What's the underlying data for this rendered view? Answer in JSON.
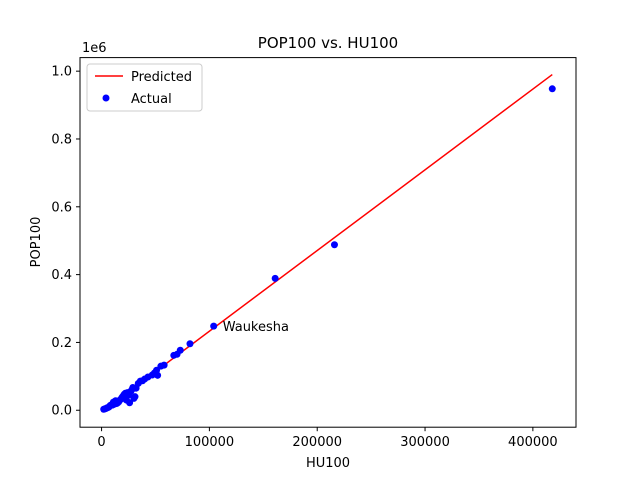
{
  "chart_data": {
    "type": "scatter",
    "title": "POP100 vs. HU100",
    "xlabel": "HU100",
    "ylabel": "POP100",
    "y_offset_label": "1e6",
    "xlim": [
      -20000,
      440000
    ],
    "ylim": [
      -0.05,
      1.04
    ],
    "x_ticks": [
      0,
      100000,
      200000,
      300000,
      400000
    ],
    "x_tick_labels": [
      "0",
      "100000",
      "200000",
      "300000",
      "400000"
    ],
    "y_ticks": [
      0.0,
      0.2,
      0.4,
      0.6,
      0.8,
      1.0
    ],
    "y_tick_labels": [
      "0.0",
      "0.2",
      "0.4",
      "0.6",
      "0.8",
      "1.0"
    ],
    "grid": false,
    "legend_position": "top-left",
    "series": [
      {
        "name": "Predicted",
        "kind": "line",
        "color": "#ff0000",
        "x": [
          0,
          418000
        ],
        "y": [
          -0.005,
          0.99
        ]
      },
      {
        "name": "Actual",
        "kind": "scatter",
        "color": "#0000ff",
        "x": [
          418000,
          216000,
          161000,
          104000,
          82000,
          73000,
          70000,
          67000,
          58000,
          55000,
          52000,
          51000,
          49000,
          47000,
          43000,
          40000,
          38000,
          36000,
          34000,
          32000,
          31000,
          30000,
          29000,
          28000,
          27000,
          26000,
          25000,
          24000,
          23000,
          22000,
          21000,
          20000,
          19000,
          18000,
          17000,
          16000,
          15000,
          14000,
          13000,
          12000,
          11000,
          10000,
          9000,
          8000,
          7000,
          6000,
          5000,
          4000,
          3000,
          2000
        ],
        "y": [
          0.948,
          0.488,
          0.389,
          0.248,
          0.196,
          0.177,
          0.165,
          0.162,
          0.133,
          0.13,
          0.103,
          0.118,
          0.11,
          0.104,
          0.098,
          0.092,
          0.087,
          0.086,
          0.079,
          0.065,
          0.04,
          0.035,
          0.067,
          0.06,
          0.055,
          0.022,
          0.045,
          0.052,
          0.03,
          0.05,
          0.047,
          0.042,
          0.038,
          0.033,
          0.03,
          0.025,
          0.022,
          0.02,
          0.028,
          0.018,
          0.024,
          0.015,
          0.016,
          0.014,
          0.01,
          0.008,
          0.007,
          0.005,
          0.004,
          0.003
        ]
      }
    ],
    "annotations": [
      {
        "text": "Waukesha",
        "x": 104000,
        "y": 0.248
      }
    ]
  }
}
